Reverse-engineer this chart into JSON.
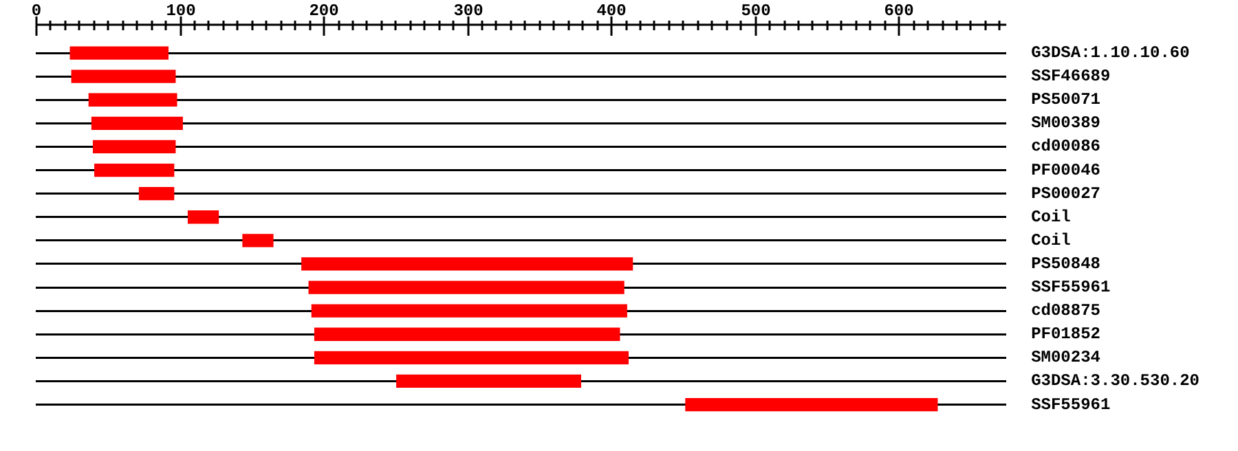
{
  "chart_data": {
    "type": "bar",
    "orientation": "horizontal",
    "grid": "y",
    "legend": false,
    "categories": [
      "G3DSA:1.10.10.60",
      "SSF46689",
      "PS50071",
      "SM00389",
      "cd00086",
      "PF00046",
      "PS00027",
      "Coil",
      "Coil",
      "PS50848",
      "SSF55961",
      "cd08875",
      "PF01852",
      "SM00234",
      "G3DSA:3.30.530.20",
      "SSF55961"
    ],
    "base": [
      24,
      25,
      37,
      39,
      40,
      41,
      72,
      106,
      144,
      185,
      190,
      192,
      194,
      194,
      251,
      452
    ],
    "values": [
      68,
      72,
      61,
      63,
      57,
      55,
      24,
      21,
      21,
      230,
      219,
      219,
      212,
      218,
      128,
      175
    ],
    "color": "#ff0000",
    "xlim": [
      0,
      675
    ],
    "xticks": [
      0,
      {
        "value": 10,
        "label": null
      },
      {
        "value": 20,
        "label": null
      },
      {
        "value": 30,
        "label": null
      },
      {
        "value": 40,
        "label": null
      },
      {
        "value": 50,
        "label": null
      },
      {
        "value": 60,
        "label": null
      },
      {
        "value": 70,
        "label": null
      },
      {
        "value": 80,
        "label": null
      },
      {
        "value": 90,
        "label": null
      },
      100,
      {
        "value": 110,
        "label": null
      },
      {
        "value": 120,
        "label": null
      },
      {
        "value": 130,
        "label": null
      },
      {
        "value": 140,
        "label": null
      },
      {
        "value": 150,
        "label": null
      },
      {
        "value": 160,
        "label": null
      },
      {
        "value": 170,
        "label": null
      },
      {
        "value": 180,
        "label": null
      },
      {
        "value": 190,
        "label": null
      },
      200,
      {
        "value": 210,
        "label": null
      },
      {
        "value": 220,
        "label": null
      },
      {
        "value": 230,
        "label": null
      },
      {
        "value": 240,
        "label": null
      },
      {
        "value": 250,
        "label": null
      },
      {
        "value": 260,
        "label": null
      },
      {
        "value": 270,
        "label": null
      },
      {
        "value": 280,
        "label": null
      },
      {
        "value": 290,
        "label": null
      },
      300,
      {
        "value": 310,
        "label": null
      },
      {
        "value": 320,
        "label": null
      },
      {
        "value": 330,
        "label": null
      },
      {
        "value": 340,
        "label": null
      },
      {
        "value": 350,
        "label": null
      },
      {
        "value": 360,
        "label": null
      },
      {
        "value": 370,
        "label": null
      },
      {
        "value": 380,
        "label": null
      },
      {
        "value": 390,
        "label": null
      },
      400,
      {
        "value": 410,
        "label": null
      },
      {
        "value": 420,
        "label": null
      },
      {
        "value": 430,
        "label": null
      },
      {
        "value": 440,
        "label": null
      },
      {
        "value": 450,
        "label": null
      },
      {
        "value": 460,
        "label": null
      },
      {
        "value": 470,
        "label": null
      },
      {
        "value": 480,
        "label": null
      },
      {
        "value": 490,
        "label": null
      },
      500,
      {
        "value": 510,
        "label": null
      },
      {
        "value": 520,
        "label": null
      },
      {
        "value": 530,
        "label": null
      },
      {
        "value": 540,
        "label": null
      },
      {
        "value": 550,
        "label": null
      },
      {
        "value": 560,
        "label": null
      },
      {
        "value": 570,
        "label": null
      },
      {
        "value": 580,
        "label": null
      },
      {
        "value": 590,
        "label": null
      },
      600,
      {
        "value": 610,
        "label": null
      },
      {
        "value": 620,
        "label": null
      },
      {
        "value": 630,
        "label": null
      },
      {
        "value": 640,
        "label": null
      },
      {
        "value": 650,
        "label": null
      },
      {
        "value": 660,
        "label": null
      },
      {
        "value": 670,
        "label": null
      }
    ]
  }
}
